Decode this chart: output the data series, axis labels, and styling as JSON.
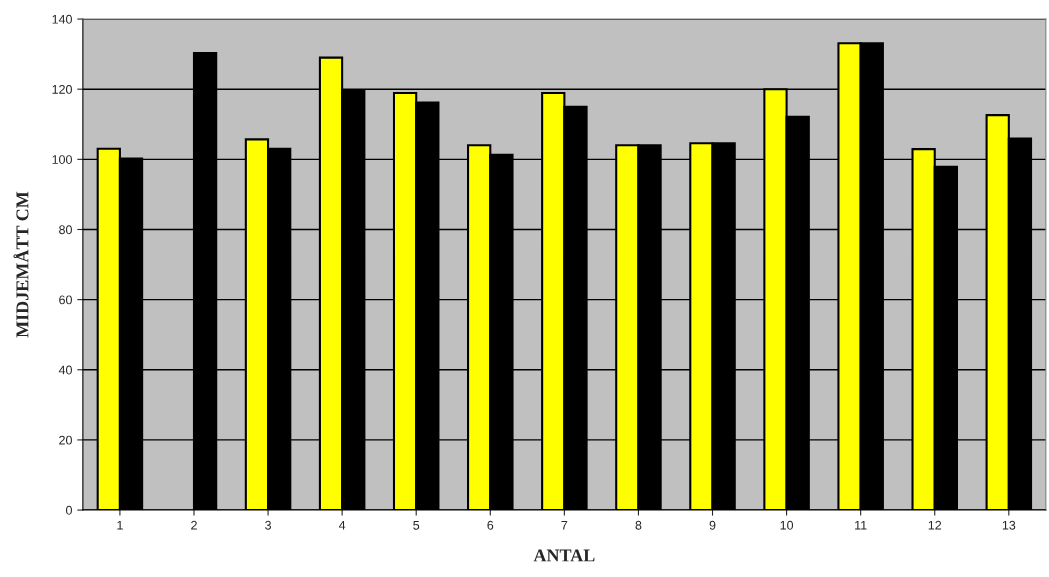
{
  "chart_data": {
    "type": "bar",
    "xlabel": "ANTAL",
    "ylabel": "MIDJEMÅTT CM",
    "categories": [
      "1",
      "2",
      "3",
      "4",
      "5",
      "6",
      "7",
      "8",
      "9",
      "10",
      "11",
      "12",
      "13"
    ],
    "series": [
      {
        "color": "#ffff00",
        "values": [
          103,
          null,
          105.7,
          129,
          118.9,
          104,
          118.9,
          104,
          104.6,
          120,
          133.1,
          102.9,
          112.6
        ]
      },
      {
        "color": "#000000",
        "values": [
          100.2,
          130.3,
          103,
          119.6,
          116.2,
          101.3,
          115,
          104,
          104.6,
          112.1,
          133.1,
          97.9,
          105.9
        ]
      }
    ],
    "ylim": [
      0,
      140
    ],
    "yticks": [
      0,
      20,
      40,
      60,
      80,
      100,
      120,
      140
    ],
    "grid": "y",
    "legend": false
  }
}
